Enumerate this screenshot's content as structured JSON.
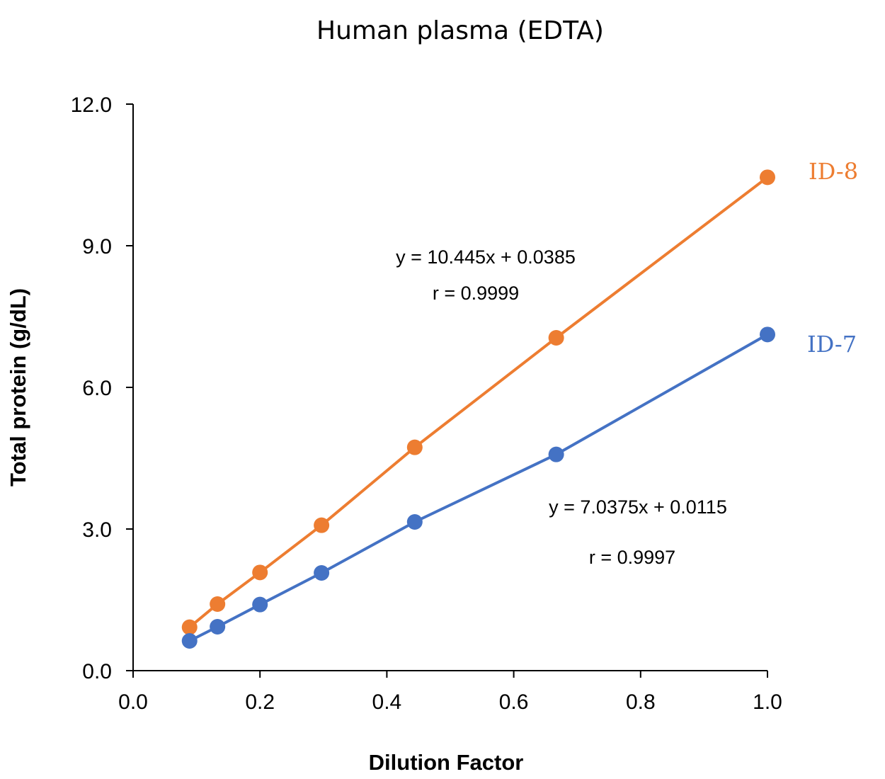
{
  "chart_data": {
    "type": "line",
    "title": "Human plasma (EDTA)",
    "xlabel": "Dilution Factor",
    "ylabel": "Total protein (g/dL)",
    "xlim": [
      0,
      1.0
    ],
    "ylim": [
      0,
      12.0
    ],
    "xticks": [
      "0.0",
      "0.2",
      "0.4",
      "0.6",
      "0.8",
      "1.0"
    ],
    "yticks": [
      "0.0",
      "3.0",
      "6.0",
      "9.0",
      "12.0"
    ],
    "grid": false,
    "series": [
      {
        "name": "ID-8",
        "color": "#ED7D31",
        "x": [
          0.089,
          0.133,
          0.2,
          0.297,
          0.444,
          0.667,
          1.0
        ],
        "y": [
          0.92,
          1.41,
          2.08,
          3.08,
          4.73,
          7.05,
          10.45
        ],
        "equation": "y = 10.445x + 0.0385",
        "r": "r = 0.9999"
      },
      {
        "name": "ID-7",
        "color": "#4472C4",
        "x": [
          0.089,
          0.133,
          0.2,
          0.297,
          0.444,
          0.667,
          1.0
        ],
        "y": [
          0.63,
          0.93,
          1.4,
          2.07,
          3.15,
          4.58,
          7.12
        ],
        "equation": "y = 7.0375x + 0.0115",
        "r": "r = 0.9997"
      }
    ]
  }
}
